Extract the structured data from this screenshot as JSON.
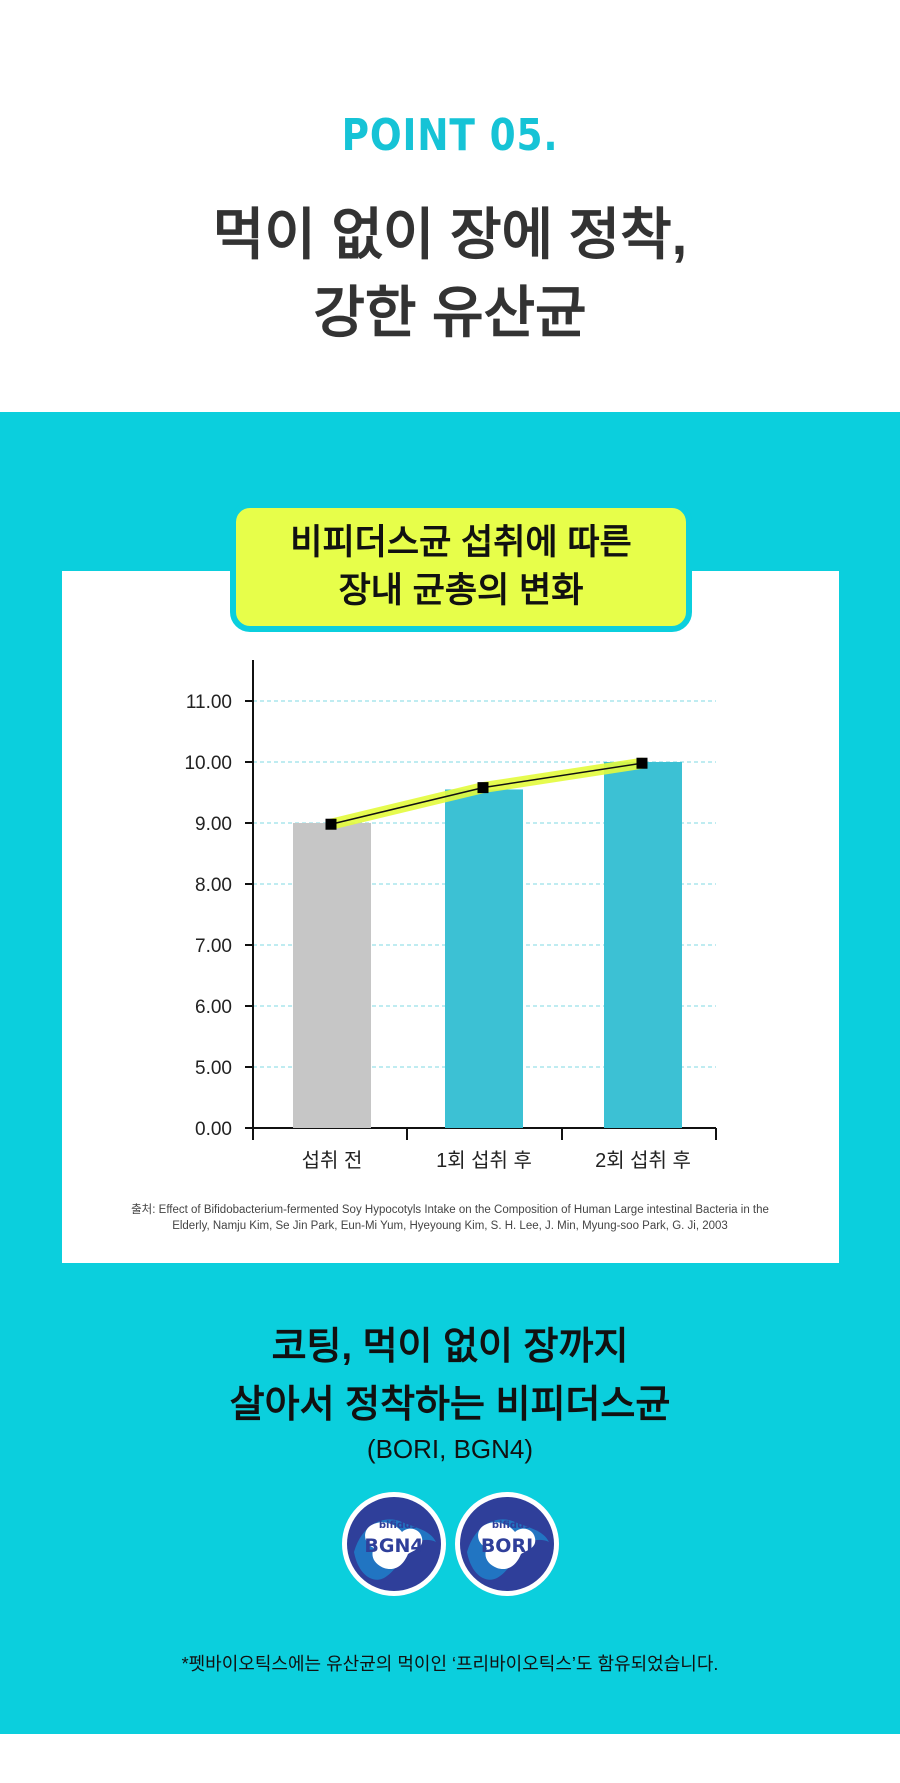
{
  "header": {
    "point_label": "POINT 05.",
    "headline_line1": "먹이 없이 장에 정착,",
    "headline_line2": "강한 유산균"
  },
  "chart_data": {
    "type": "bar",
    "title_line1": "비피더스균 섭취에 따른",
    "title_line2": "장내 균총의 변화",
    "categories": [
      "섭취 전",
      "1회 섭취 후",
      "2회 섭취 후"
    ],
    "values": [
      9.0,
      9.55,
      10.0
    ],
    "bar_colors": [
      "#c6c6c6",
      "#3cc1d4",
      "#3cc1d4"
    ],
    "line_values": [
      8.98,
      9.58,
      9.98
    ],
    "line_color": "#111111",
    "line_highlight_color": "#e3fb3c",
    "ytick_labels": [
      "0.00",
      "5.00",
      "6.00",
      "7.00",
      "8.00",
      "9.00",
      "10.00",
      "11.00"
    ],
    "ytick_values": [
      0,
      5,
      6,
      7,
      8,
      9,
      10,
      11
    ],
    "axis_break": true,
    "grid": true,
    "grid_color": "#7fd8e3",
    "source_line1": "출처: Effect of Bifidobacterium-fermented Soy Hypocotyls Intake on the Composition of Human Large intestinal Bacteria in the",
    "source_line2": "Elderly, Namju Kim, Se Jin Park, Eun-Mi Yum, Hyeyoung Kim, S. H. Lee, J. Min, Myung-soo Park, G. Ji, 2003"
  },
  "caption": {
    "line1": "코팅, 먹이 없이 장까지",
    "line2": "살아서 정착하는 비피더스균",
    "sub": "(BORI, BGN4)"
  },
  "badges": [
    {
      "top": "bifidus",
      "name": "BGN4"
    },
    {
      "top": "bifidus",
      "name": "BORI"
    }
  ],
  "footnote": "*펫바이오틱스에는 유산균의 먹이인 ‘프리바이오틱스’도 함유되었습니다.",
  "colors": {
    "accent": "#16c3d6",
    "teal_background": "#0bcfdd",
    "title_box": "#e7fe4a",
    "badge_blue": "#2f3f9a"
  }
}
